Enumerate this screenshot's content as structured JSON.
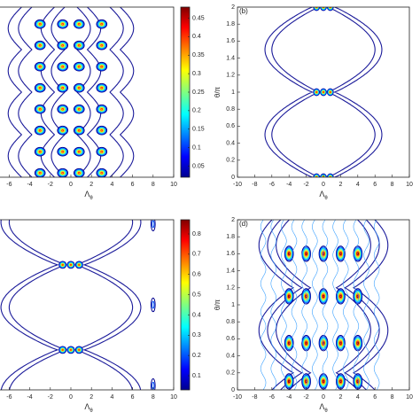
{
  "chart_data": [
    {
      "type": "contour",
      "xlabel": "Λ",
      "xlabel_subscript": "θ",
      "xlim": [
        -10,
        10
      ],
      "xticks": [
        -6,
        -4,
        -2,
        0,
        2,
        4,
        6,
        8,
        10
      ],
      "ylim": [
        0,
        2
      ],
      "colorbar": {
        "lim": [
          0.02,
          0.48
        ],
        "ticks": [
          0.05,
          0.1,
          0.15,
          0.2,
          0.25,
          0.3,
          0.35,
          0.4,
          0.45
        ]
      }
    },
    {
      "type": "contour",
      "panel_label": "(b)",
      "xlabel": "Λ",
      "xlabel_subscript": "θ",
      "ylabel": "θ/π",
      "xlim": [
        -10,
        10
      ],
      "xticks": [
        -10,
        -8,
        -6,
        -4,
        -2,
        0,
        2,
        4,
        6,
        8,
        10
      ],
      "ylim": [
        0,
        2
      ],
      "yticks": [
        0,
        0.2,
        0.4,
        0.6,
        0.8,
        1,
        1.2,
        1.4,
        1.6,
        1.8,
        2
      ]
    },
    {
      "type": "contour",
      "xlabel": "Λ",
      "xlabel_subscript": "θ",
      "xlim": [
        -10,
        10
      ],
      "xticks": [
        -6,
        -4,
        -2,
        0,
        2,
        4,
        6,
        8,
        10
      ],
      "ylim": [
        0,
        2
      ],
      "colorbar": {
        "lim": [
          0.03,
          0.87
        ],
        "ticks": [
          0.1,
          0.2,
          0.3,
          0.4,
          0.5,
          0.6,
          0.7,
          0.8
        ]
      }
    },
    {
      "type": "contour",
      "panel_label": "(d)",
      "xlabel": "Λ",
      "xlabel_subscript": "θ",
      "ylabel": "θ/π",
      "xlim": [
        -10,
        10
      ],
      "xticks": [
        -10,
        -8,
        -6,
        -4,
        -2,
        0,
        2,
        4,
        6,
        8,
        10
      ],
      "ylim": [
        0,
        2
      ],
      "yticks": [
        0,
        0.2,
        0.4,
        0.6,
        0.8,
        1,
        1.2,
        1.4,
        1.6,
        1.8,
        2
      ]
    }
  ]
}
